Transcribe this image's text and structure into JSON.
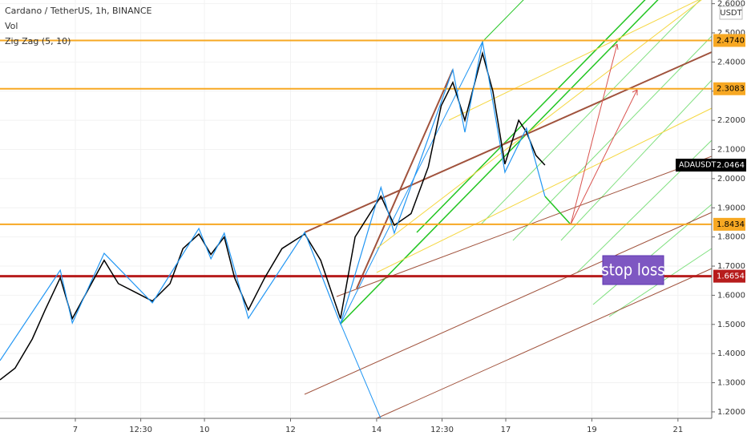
{
  "chart_data": {
    "type": "line",
    "title": "Cardano / TetherUS, 1h, BINANCE",
    "indicators": [
      "Vol",
      "Zig Zag (5, 10)"
    ],
    "currency": "USDT",
    "annotation": "stop loss",
    "xlim": [
      5.25,
      21.785
    ],
    "xticks": [
      {
        "value": 7,
        "label": "7"
      },
      {
        "value": 8.52,
        "label": "12:30"
      },
      {
        "value": 10,
        "label": "10"
      },
      {
        "value": 12,
        "label": "12"
      },
      {
        "value": 14,
        "label": "14"
      },
      {
        "value": 15.52,
        "label": "12:30"
      },
      {
        "value": 17,
        "label": "17"
      },
      {
        "value": 19,
        "label": "19"
      },
      {
        "value": 21,
        "label": "21"
      }
    ],
    "ylim": [
      1.1778,
      2.6127
    ],
    "yticks": [
      {
        "value": 1.2,
        "label": "1.2000"
      },
      {
        "value": 1.3,
        "label": "1.3000"
      },
      {
        "value": 1.4,
        "label": "1.4000"
      },
      {
        "value": 1.5,
        "label": "1.5000"
      },
      {
        "value": 1.6,
        "label": "1.6000"
      },
      {
        "value": 1.7,
        "label": "1.7000"
      },
      {
        "value": 1.8,
        "label": "1.8000"
      },
      {
        "value": 1.9,
        "label": "1.9000"
      },
      {
        "value": 2.0,
        "label": "2.0000"
      },
      {
        "value": 2.1,
        "label": "2.1000"
      },
      {
        "value": 2.2,
        "label": "2.2000"
      },
      {
        "value": 2.3,
        "label": "2.3000"
      },
      {
        "value": 2.4,
        "label": "2.4000"
      },
      {
        "value": 2.5,
        "label": "2.5000"
      },
      {
        "value": 2.6,
        "label": "2.6000"
      }
    ],
    "levels": [
      {
        "value": 2.474,
        "label": "2.4740",
        "color": "#f7a823"
      },
      {
        "value": 2.3083,
        "label": "2.3083",
        "color": "#f7a823"
      },
      {
        "value": 1.8434,
        "label": "1.8434",
        "color": "#f7a823"
      },
      {
        "value": 1.6654,
        "label": "1.6654",
        "color": "#b71c1c"
      }
    ],
    "series": [
      {
        "name": "ADAUSDT",
        "color": "#000000",
        "value_label": "2.0464",
        "x": [
          5.25,
          5.6,
          6.0,
          6.3,
          6.65,
          6.93,
          7.3,
          7.67,
          8.0,
          8.4,
          8.79,
          9.2,
          9.5,
          9.87,
          10.15,
          10.46,
          10.7,
          11.02,
          11.4,
          11.8,
          12.33,
          12.7,
          13.16,
          13.5,
          14.1,
          14.41,
          14.8,
          15.2,
          15.5,
          15.77,
          16.05,
          16.46,
          16.7,
          16.98,
          17.3,
          17.48,
          17.7,
          17.91
        ],
        "values": [
          1.31,
          1.35,
          1.45,
          1.55,
          1.66,
          1.52,
          1.62,
          1.72,
          1.64,
          1.61,
          1.58,
          1.64,
          1.76,
          1.81,
          1.74,
          1.8,
          1.66,
          1.55,
          1.66,
          1.76,
          1.81,
          1.72,
          1.52,
          1.8,
          1.94,
          1.84,
          1.88,
          2.04,
          2.25,
          2.33,
          2.2,
          2.43,
          2.3,
          2.05,
          2.2,
          2.16,
          2.08,
          2.0464
        ]
      },
      {
        "name": "Zig Zag (5, 10)",
        "color": "#2196f3",
        "x": [
          5.25,
          6.65,
          6.93,
          7.67,
          8.79,
          9.87,
          10.15,
          10.46,
          11.02,
          12.33,
          13.16,
          14.1,
          14.41,
          15.77,
          16.05,
          16.46,
          16.98,
          17.48,
          17.91
        ],
        "values": [
          1.376,
          1.686,
          1.505,
          1.744,
          1.574,
          1.829,
          1.725,
          1.813,
          1.521,
          1.816,
          1.502,
          1.97,
          1.813,
          2.374,
          2.159,
          2.47,
          2.022,
          2.173,
          1.939
        ]
      }
    ]
  }
}
